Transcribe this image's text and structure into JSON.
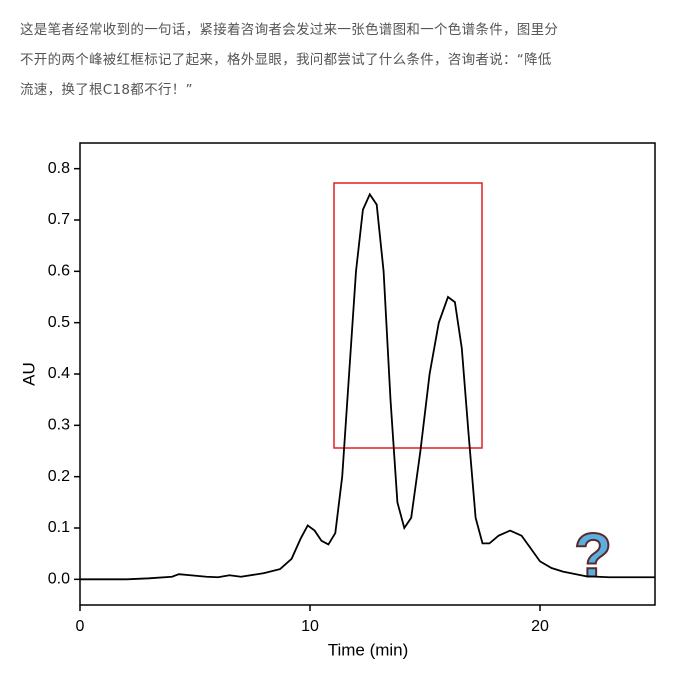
{
  "paragraph_lines": [
    "这是笔者经常收到的一句话，紧接着咨询者会发过来一张色谱图和一个色谱条件，图里分",
    "不开的两个峰被红框标记了起来，格外显眼，我问都尝试了什么条件，咨询者说：“降低",
    "流速，换了根C18都不行！”"
  ],
  "chart_data": {
    "type": "line",
    "x_label": "Time (min)",
    "y_label": "AU",
    "annotation": "?",
    "xlim": [
      0,
      25
    ],
    "ylim": [
      -0.05,
      0.85
    ],
    "xticks": [
      0,
      10,
      20
    ],
    "yticks": [
      {
        "value": 0,
        "label": "0.0"
      },
      0.1,
      0.2,
      0.3,
      0.4,
      0.5,
      0.6,
      0.7,
      0.8
    ],
    "series": [
      {
        "color": "#000000",
        "x": [
          0,
          2,
          3,
          4,
          4.3,
          4.8,
          5.5,
          6,
          6.5,
          7,
          8,
          8.7,
          9.2,
          9.6,
          9.9,
          10.2,
          10.5,
          10.8,
          11.1,
          11.4,
          11.7,
          12,
          12.3,
          12.6,
          12.9,
          13.2,
          13.5,
          13.8,
          14.1,
          14.4,
          14.8,
          15.2,
          15.6,
          16,
          16.3,
          16.6,
          16.9,
          17.2,
          17.5,
          17.8,
          18.2,
          18.7,
          19.2,
          19.6,
          20,
          20.5,
          21,
          22,
          23,
          25
        ],
        "values": [
          0,
          0,
          0.002,
          0.005,
          0.01,
          0.008,
          0.005,
          0.004,
          0.008,
          0.005,
          0.012,
          0.02,
          0.04,
          0.08,
          0.105,
          0.095,
          0.075,
          0.068,
          0.09,
          0.2,
          0.4,
          0.6,
          0.72,
          0.75,
          0.73,
          0.6,
          0.35,
          0.15,
          0.1,
          0.12,
          0.25,
          0.4,
          0.5,
          0.55,
          0.54,
          0.45,
          0.28,
          0.12,
          0.07,
          0.07,
          0.085,
          0.095,
          0.085,
          0.06,
          0.035,
          0.022,
          0.015,
          0.006,
          0.004,
          0.004
        ]
      }
    ]
  }
}
